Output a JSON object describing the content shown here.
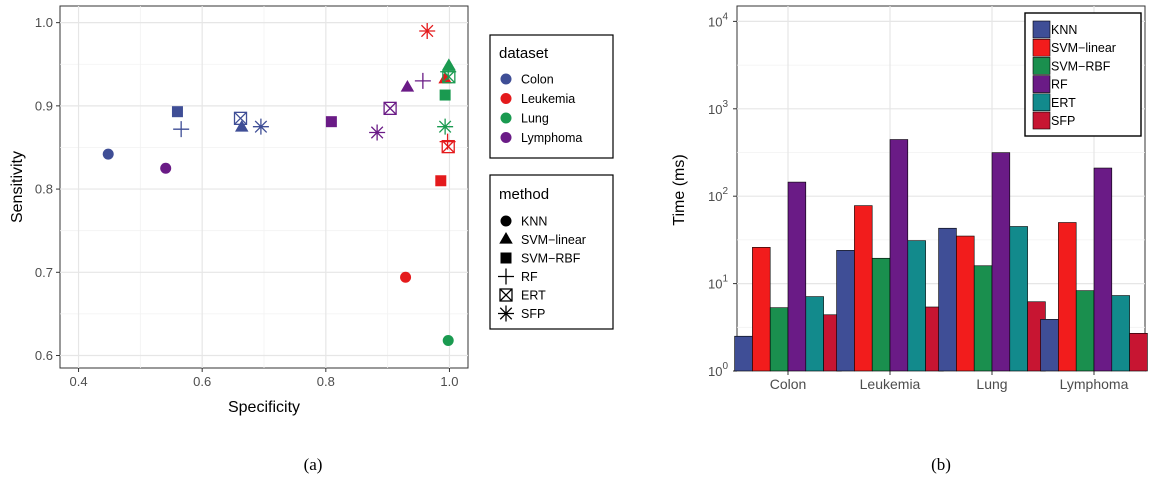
{
  "chart_data": [
    {
      "type": "scatter",
      "xlabel": "Specificity",
      "ylabel": "Sensitivity",
      "xlim": [
        0.37,
        1.03
      ],
      "ylim": [
        0.585,
        1.02
      ],
      "xticks": [
        "0.4",
        "0.6",
        "0.8",
        "1.0"
      ],
      "yticks": [
        "0.6",
        "0.7",
        "0.8",
        "0.9",
        "1.0"
      ],
      "grid": true,
      "colors": {
        "Colon": "#3f4e96",
        "Leukemia": "#e41a1c",
        "Lung": "#1a9a50",
        "Lymphoma": "#6a1b86"
      },
      "legend_dataset": {
        "title": "dataset",
        "items": [
          "Colon",
          "Leukemia",
          "Lung",
          "Lymphoma"
        ]
      },
      "legend_method": {
        "title": "method",
        "items": [
          "KNN",
          "SVM−linear",
          "SVM−RBF",
          "RF",
          "ERT",
          "SFP"
        ]
      },
      "shapes": {
        "KNN": "circle",
        "SVM−linear": "triangle",
        "SVM−RBF": "square",
        "RF": "plus",
        "ERT": "boxx",
        "SFP": "asterisk"
      },
      "points": [
        {
          "dataset": "Colon",
          "method": "KNN",
          "x": 0.448,
          "y": 0.842
        },
        {
          "dataset": "Colon",
          "method": "SVM−linear",
          "x": 0.664,
          "y": 0.874
        },
        {
          "dataset": "Colon",
          "method": "SVM−RBF",
          "x": 0.56,
          "y": 0.893
        },
        {
          "dataset": "Colon",
          "method": "RF",
          "x": 0.566,
          "y": 0.872
        },
        {
          "dataset": "Colon",
          "method": "ERT",
          "x": 0.662,
          "y": 0.885
        },
        {
          "dataset": "Colon",
          "method": "SFP",
          "x": 0.695,
          "y": 0.875
        },
        {
          "dataset": "Leukemia",
          "method": "KNN",
          "x": 0.929,
          "y": 0.694
        },
        {
          "dataset": "Leukemia",
          "method": "SVM−linear",
          "x": 0.993,
          "y": 0.932
        },
        {
          "dataset": "Leukemia",
          "method": "SVM−RBF",
          "x": 0.986,
          "y": 0.81
        },
        {
          "dataset": "Leukemia",
          "method": "RF",
          "x": 0.997,
          "y": 0.857
        },
        {
          "dataset": "Leukemia",
          "method": "ERT",
          "x": 0.998,
          "y": 0.851
        },
        {
          "dataset": "Leukemia",
          "method": "SFP",
          "x": 0.964,
          "y": 0.99
        },
        {
          "dataset": "Lung",
          "method": "KNN",
          "x": 0.998,
          "y": 0.618
        },
        {
          "dataset": "Lung",
          "method": "SVM−linear",
          "x": 0.999,
          "y": 0.948
        },
        {
          "dataset": "Lung",
          "method": "SVM−RBF",
          "x": 0.993,
          "y": 0.913
        },
        {
          "dataset": "Lung",
          "method": "RF",
          "x": 0.998,
          "y": 0.941
        },
        {
          "dataset": "Lung",
          "method": "ERT",
          "x": 0.999,
          "y": 0.935
        },
        {
          "dataset": "Lung",
          "method": "SFP",
          "x": 0.993,
          "y": 0.875
        },
        {
          "dataset": "Lymphoma",
          "method": "KNN",
          "x": 0.541,
          "y": 0.825
        },
        {
          "dataset": "Lymphoma",
          "method": "SVM−linear",
          "x": 0.932,
          "y": 0.922
        },
        {
          "dataset": "Lymphoma",
          "method": "SVM−RBF",
          "x": 0.809,
          "y": 0.881
        },
        {
          "dataset": "Lymphoma",
          "method": "RF",
          "x": 0.957,
          "y": 0.93
        },
        {
          "dataset": "Lymphoma",
          "method": "ERT",
          "x": 0.904,
          "y": 0.897
        },
        {
          "dataset": "Lymphoma",
          "method": "SFP",
          "x": 0.883,
          "y": 0.868
        }
      ],
      "caption": "(a)"
    },
    {
      "type": "bar",
      "ylabel": "Time (ms)",
      "log_scale": true,
      "ylim": [
        1,
        15000
      ],
      "yticks": [
        {
          "base": "10",
          "exp": "0"
        },
        {
          "base": "10",
          "exp": "1"
        },
        {
          "base": "10",
          "exp": "2"
        },
        {
          "base": "10",
          "exp": "3"
        },
        {
          "base": "10",
          "exp": "4"
        }
      ],
      "categories": [
        "Colon",
        "Leukemia",
        "Lung",
        "Lymphoma"
      ],
      "grid": true,
      "legend_position": "top-right",
      "series": [
        {
          "name": "KNN",
          "color": "#3f4e96",
          "values": [
            2.5,
            24,
            43,
            3.9
          ]
        },
        {
          "name": "SVM−linear",
          "color": "#f21c1c",
          "values": [
            26,
            78,
            35,
            50
          ]
        },
        {
          "name": "SVM−RBF",
          "color": "#1a8f4e",
          "values": [
            5.3,
            19.5,
            16,
            8.3
          ]
        },
        {
          "name": "RF",
          "color": "#6a1b86",
          "values": [
            145,
            445,
            315,
            210
          ]
        },
        {
          "name": "ERT",
          "color": "#128a8c",
          "values": [
            7.1,
            31,
            45,
            7.3
          ]
        },
        {
          "name": "SFP",
          "color": "#c71532",
          "values": [
            4.4,
            5.4,
            6.2,
            2.7
          ]
        }
      ],
      "caption": "(b)"
    }
  ]
}
